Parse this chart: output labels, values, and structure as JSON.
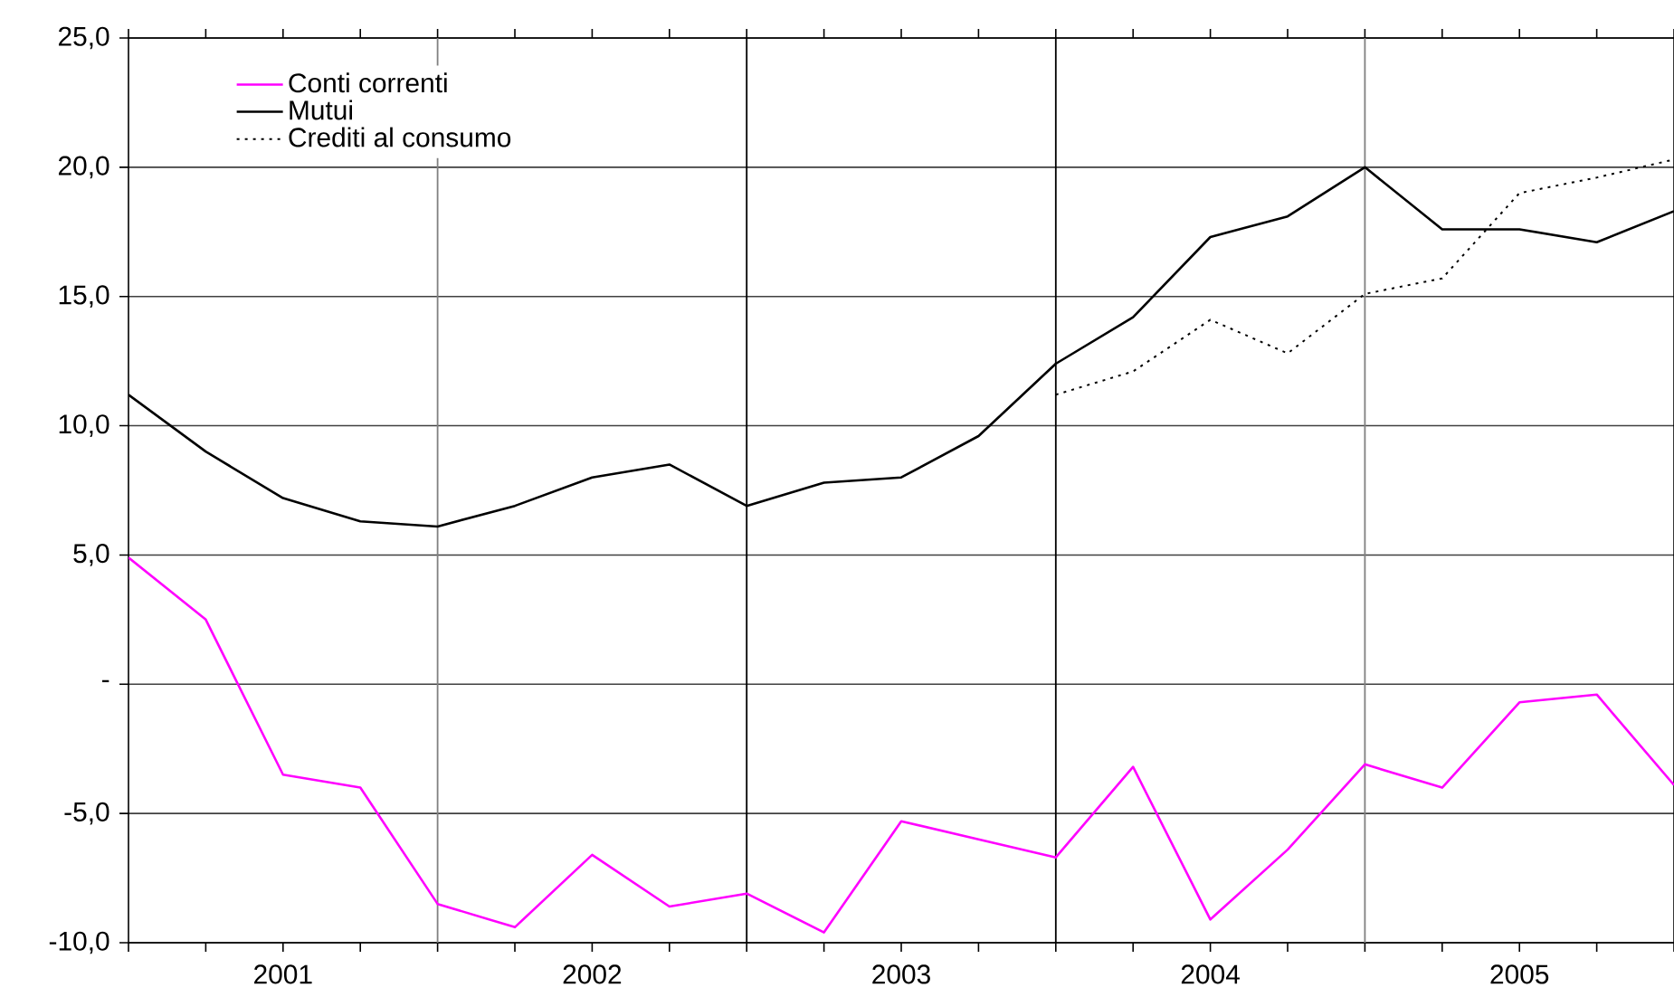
{
  "chart_data": {
    "type": "line",
    "x": [
      2001,
      2001.25,
      2001.5,
      2001.75,
      2002,
      2002.25,
      2002.5,
      2002.75,
      2003,
      2003.25,
      2003.5,
      2003.75,
      2004,
      2004.25,
      2004.5,
      2004.75,
      2005,
      2005.25,
      2005.5,
      2005.75,
      2006
    ],
    "series": [
      {
        "name": "Conti correnti",
        "color": "#ff00ff",
        "line_style": "solid",
        "values": [
          4.9,
          2.5,
          -3.5,
          -4.0,
          -8.5,
          -9.4,
          -6.6,
          -8.6,
          -8.1,
          -9.6,
          -5.3,
          -6.0,
          -6.7,
          -3.2,
          -9.1,
          -6.4,
          -3.1,
          -4.0,
          -0.7,
          -0.4,
          -3.9
        ]
      },
      {
        "name": "Mutui",
        "color": "#000000",
        "line_style": "solid",
        "values": [
          11.2,
          9.0,
          7.2,
          6.3,
          6.1,
          6.9,
          8.0,
          8.5,
          6.9,
          7.8,
          8.0,
          9.6,
          12.4,
          14.2,
          17.3,
          18.1,
          20.0,
          17.6,
          17.6,
          17.1,
          18.3
        ]
      },
      {
        "name": "Crediti al consumo",
        "color": "#000000",
        "line_style": "dotted",
        "values": [
          null,
          null,
          null,
          null,
          null,
          null,
          null,
          null,
          null,
          null,
          null,
          null,
          11.2,
          12.1,
          14.1,
          12.8,
          15.1,
          15.7,
          19.0,
          19.6,
          20.3
        ]
      }
    ],
    "xlim": [
      2001,
      2006
    ],
    "xticks": [
      {
        "value": 2001,
        "label": null
      },
      {
        "value": 2001.25,
        "label": null
      },
      {
        "value": 2001.5,
        "label": "2001"
      },
      {
        "value": 2001.75,
        "label": null
      },
      {
        "value": 2002,
        "label": null
      },
      {
        "value": 2002.25,
        "label": null
      },
      {
        "value": 2002.5,
        "label": "2002"
      },
      {
        "value": 2002.75,
        "label": null
      },
      {
        "value": 2003,
        "label": null
      },
      {
        "value": 2003.25,
        "label": null
      },
      {
        "value": 2003.5,
        "label": "2003"
      },
      {
        "value": 2003.75,
        "label": null
      },
      {
        "value": 2004,
        "label": null
      },
      {
        "value": 2004.25,
        "label": null
      },
      {
        "value": 2004.5,
        "label": "2004"
      },
      {
        "value": 2004.75,
        "label": null
      },
      {
        "value": 2005,
        "label": null
      },
      {
        "value": 2005.25,
        "label": null
      },
      {
        "value": 2005.5,
        "label": "2005"
      },
      {
        "value": 2005.75,
        "label": null
      },
      {
        "value": 2006,
        "label": null
      }
    ],
    "ylim": [
      -10,
      25
    ],
    "yticks": [
      {
        "value": -10,
        "label": "-10,0"
      },
      {
        "value": -5,
        "label": "-5,0"
      },
      {
        "value": 0,
        "label": "-"
      },
      {
        "value": 5,
        "label": "5,0"
      },
      {
        "value": 10,
        "label": "10,0"
      },
      {
        "value": 15,
        "label": "15,0"
      },
      {
        "value": 20,
        "label": "20,0"
      },
      {
        "value": 25,
        "label": "25,0"
      }
    ],
    "ref_lines": [
      {
        "axis": "x",
        "value": 2002,
        "color": "#808080"
      },
      {
        "axis": "x",
        "value": 2003,
        "color": "#000000"
      },
      {
        "axis": "x",
        "value": 2004,
        "color": "#000000"
      },
      {
        "axis": "x",
        "value": 2005,
        "color": "#808080"
      }
    ],
    "grid": "y",
    "legend": "top left",
    "marker": "none"
  }
}
